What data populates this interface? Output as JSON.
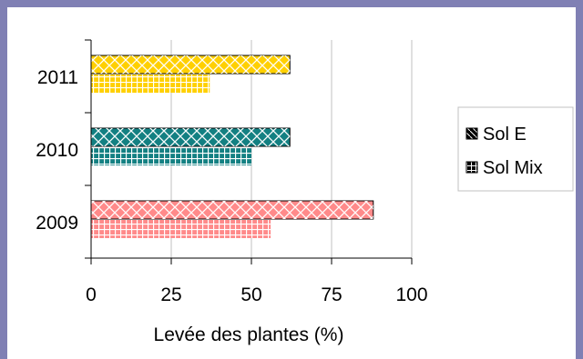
{
  "chart_data": {
    "type": "bar",
    "orientation": "horizontal",
    "categories": [
      "2011",
      "2010",
      "2009"
    ],
    "series": [
      {
        "name": "Sol E",
        "values": [
          62,
          62,
          88
        ],
        "pattern": "diagonal-crosshatch"
      },
      {
        "name": "Sol Mix",
        "values": [
          37,
          50,
          56
        ],
        "pattern": "grid"
      }
    ],
    "category_colors": {
      "2011": "#ffd000",
      "2010": "#138082",
      "2009": "#ff8a8a"
    },
    "xlabel": "Levée des plantes (%)",
    "ylabel": "",
    "title": "",
    "xlim": [
      0,
      100
    ],
    "xticks": [
      0,
      25,
      50,
      75,
      100
    ],
    "xtick_labels": [
      "0",
      "25",
      "50",
      "75",
      "100"
    ],
    "grid": "vertical",
    "legend": {
      "position": "right",
      "entries": [
        "Sol E",
        "Sol Mix"
      ]
    },
    "frame_color": "#8080b4"
  }
}
